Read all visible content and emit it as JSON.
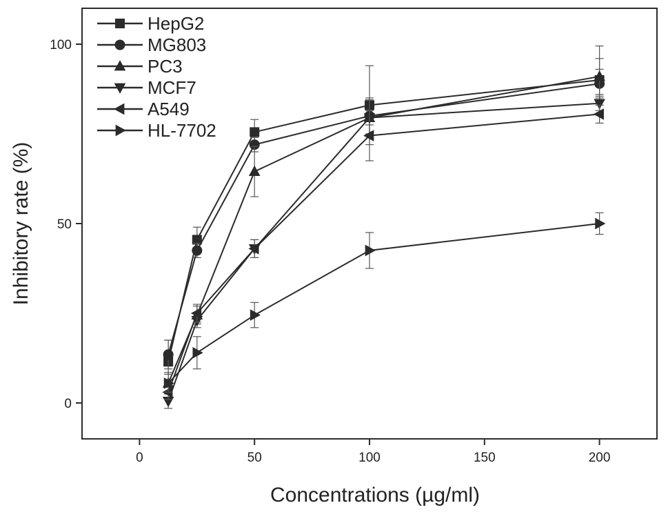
{
  "chart_data": {
    "type": "line",
    "xlabel": "Concentrations (µg/ml)",
    "ylabel": "Inhibitory rate (%)",
    "xlim": [
      -25,
      225
    ],
    "ylim": [
      -10,
      110
    ],
    "xticks": [
      0,
      50,
      100,
      150,
      200
    ],
    "yticks": [
      0,
      50,
      100
    ],
    "grid": false,
    "legend": "top-left",
    "x": [
      12.5,
      25,
      50,
      100,
      200
    ],
    "series": [
      {
        "name": "HepG2",
        "marker": "square",
        "values": [
          11.5,
          45.5,
          75.5,
          83,
          90
        ],
        "errors": [
          6,
          3.5,
          3.5,
          11,
          9.5
        ]
      },
      {
        "name": "MG803",
        "marker": "circle",
        "values": [
          13.5,
          42.5,
          72,
          80,
          89
        ],
        "errors": [
          4,
          2,
          2,
          5,
          4
        ]
      },
      {
        "name": "PC3",
        "marker": "triangle-up",
        "values": [
          5.5,
          24.5,
          64.5,
          79.5,
          91
        ],
        "errors": [
          3,
          2.5,
          7,
          5,
          5
        ]
      },
      {
        "name": "MCF7",
        "marker": "triangle-down",
        "values": [
          0.5,
          23,
          43,
          79.5,
          83.5
        ],
        "errors": [
          2,
          2,
          2.5,
          2,
          2
        ]
      },
      {
        "name": "A549",
        "marker": "triangle-left",
        "values": [
          3,
          25,
          43,
          74.5,
          80.5
        ],
        "errors": [
          2,
          2.5,
          2.5,
          7,
          2.5
        ]
      },
      {
        "name": "HL-7702",
        "marker": "triangle-right",
        "values": [
          5.5,
          14,
          24.5,
          42.5,
          50
        ],
        "errors": [
          2.5,
          4.5,
          3.5,
          5,
          3
        ]
      }
    ]
  }
}
